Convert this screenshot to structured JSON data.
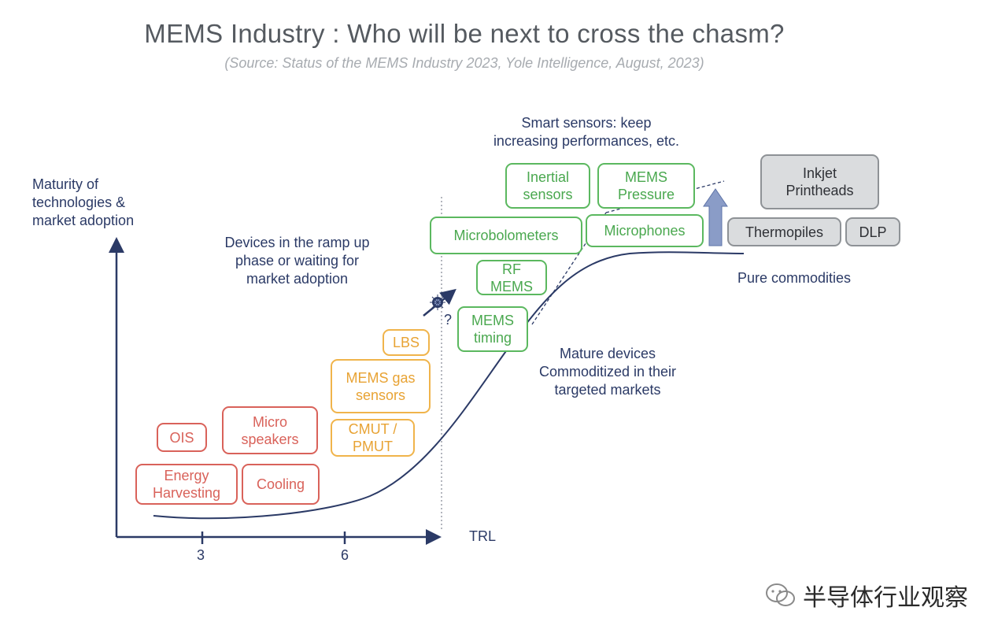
{
  "title": "MEMS Industry : Who will be next to cross the chasm?",
  "subtitle": "(Source: Status of the MEMS Industry 2023, Yole Intelligence, August, 2023)",
  "axes": {
    "y_label": [
      "Maturity of",
      "technologies &",
      "market adoption"
    ],
    "x_label": "TRL",
    "x_ticks": [
      "3",
      "6"
    ]
  },
  "annotations": {
    "ramp_up": [
      "Devices in the ramp up",
      "phase or waiting for",
      "market adoption"
    ],
    "smart_sensors": [
      "Smart sensors: keep",
      "increasing performances, etc."
    ],
    "mature": [
      "Mature devices",
      "Commoditized in their",
      "targeted markets"
    ],
    "commodities": "Pure commodities",
    "question": "?"
  },
  "boxes": {
    "red": [
      {
        "id": "ois",
        "lines": [
          "OIS"
        ]
      },
      {
        "id": "micro-speakers",
        "lines": [
          "Micro",
          "speakers"
        ]
      },
      {
        "id": "energy-harvesting",
        "lines": [
          "Energy",
          "Harvesting"
        ]
      },
      {
        "id": "cooling",
        "lines": [
          "Cooling"
        ]
      }
    ],
    "orange": [
      {
        "id": "lbs",
        "lines": [
          "LBS"
        ]
      },
      {
        "id": "mems-gas",
        "lines": [
          "MEMS gas",
          "sensors"
        ]
      },
      {
        "id": "cmut-pmut",
        "lines": [
          "CMUT /",
          "PMUT"
        ]
      }
    ],
    "green": [
      {
        "id": "inertial",
        "lines": [
          "Inertial",
          "sensors"
        ]
      },
      {
        "id": "mems-pressure",
        "lines": [
          "MEMS",
          "Pressure"
        ]
      },
      {
        "id": "microbolometers",
        "lines": [
          "Microbolometers"
        ]
      },
      {
        "id": "microphones",
        "lines": [
          "Microphones"
        ]
      },
      {
        "id": "rf-mems",
        "lines": [
          "RF",
          "MEMS"
        ]
      },
      {
        "id": "mems-timing",
        "lines": [
          "MEMS",
          "timing"
        ]
      }
    ],
    "gray": [
      {
        "id": "inkjet",
        "lines": [
          "Inkjet",
          "Printheads"
        ]
      },
      {
        "id": "thermopiles",
        "lines": [
          "Thermopiles"
        ]
      },
      {
        "id": "dlp",
        "lines": [
          "DLP"
        ]
      }
    ]
  },
  "watermark": "半导体行业观察",
  "colors": {
    "axis": "#2b3a66",
    "red": "#d9625a",
    "orange": "#f0b44b",
    "green": "#5bb85f",
    "gray_fill": "#dadcde",
    "arrow_fill": "#8a9cc7"
  }
}
